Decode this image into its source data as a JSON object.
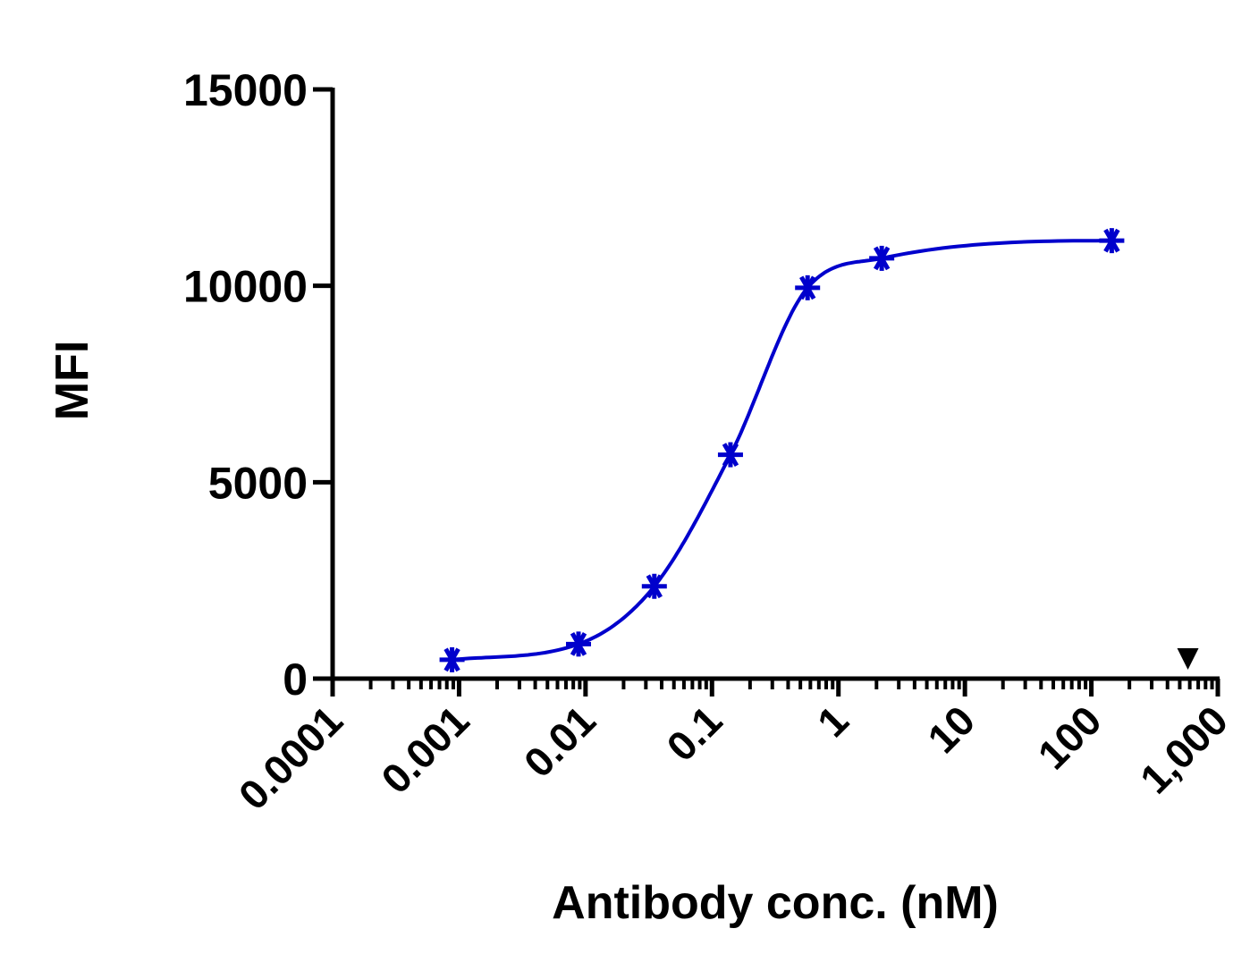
{
  "chart_data": {
    "type": "scatter",
    "title": "",
    "xlabel": "Antibody conc. (nM)",
    "ylabel": "MFI",
    "x_scale": "log",
    "xlim": [
      0.0001,
      1000
    ],
    "ylim": [
      0,
      15000
    ],
    "x_tick_labels": [
      {
        "value": 0.0001,
        "label": "0.0001"
      },
      {
        "value": 0.001,
        "label": "0.001"
      },
      {
        "value": 0.01,
        "label": "0.01"
      },
      {
        "value": 0.1,
        "label": "0.1"
      },
      {
        "value": 1,
        "label": "1"
      },
      {
        "value": 10,
        "label": "10"
      },
      {
        "value": 100,
        "label": "100"
      },
      {
        "value": 1000,
        "label": "1,000"
      }
    ],
    "y_ticks": [
      0,
      5000,
      10000,
      15000
    ],
    "y_tick_labels": [
      "0",
      "5000",
      "10000",
      "15000"
    ],
    "grid": false,
    "legend": "none",
    "series": [
      {
        "marker": "asterisk",
        "color": "#0000cc",
        "fit": "sigmoidal",
        "points": [
          {
            "x": 0.00088,
            "y": 480
          },
          {
            "x": 0.0088,
            "y": 880
          },
          {
            "x": 0.035,
            "y": 2350
          },
          {
            "x": 0.14,
            "y": 5700
          },
          {
            "x": 0.57,
            "y": 9950
          },
          {
            "x": 2.2,
            "y": 10700
          },
          {
            "x": 145,
            "y": 11150
          }
        ]
      },
      {
        "marker": "triangle-down",
        "color": "#000000",
        "fit": "none",
        "points": [
          {
            "x": 580,
            "y": 500
          }
        ]
      }
    ]
  }
}
